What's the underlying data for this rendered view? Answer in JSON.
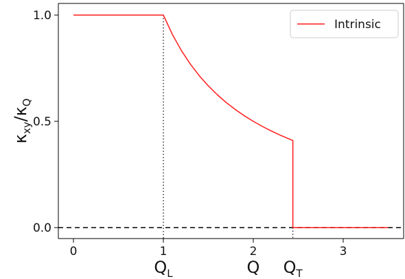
{
  "chart_data": {
    "type": "line",
    "title": "",
    "xlabel": "Q",
    "ylabel": "κxy/κQ",
    "ylabel_parts": {
      "main": "κ",
      "sub": "xy",
      "sep": "/",
      "main2": "κ",
      "sub2": "Q"
    },
    "xlim": [
      -0.17,
      3.67
    ],
    "ylim": [
      -0.05,
      1.05
    ],
    "xticks": [
      0,
      1,
      2,
      3
    ],
    "xtick_labels": [
      "0",
      "1",
      "2",
      "3"
    ],
    "yticks": [
      0.0,
      0.5,
      1.0
    ],
    "ytick_labels": [
      "0.0",
      "0.5",
      "1.0"
    ],
    "grid": false,
    "legend": {
      "placement": "top-right",
      "entries": [
        "Intrinsic"
      ]
    },
    "series": [
      {
        "name": "Intrinsic",
        "color": "#ff1a1a",
        "x": [
          0,
          1,
          1.1,
          1.2,
          1.3,
          1.4,
          1.5,
          1.6,
          1.7,
          1.8,
          1.9,
          2.0,
          2.1,
          2.2,
          2.3,
          2.42,
          2.44,
          2.44,
          3.5
        ],
        "y": [
          1.0,
          1.0,
          0.9091,
          0.8333,
          0.7692,
          0.7143,
          0.6667,
          0.625,
          0.5882,
          0.5556,
          0.5263,
          0.5,
          0.4762,
          0.4545,
          0.4348,
          0.4132,
          0.41,
          0.0,
          0.0
        ]
      }
    ],
    "reference_lines": [
      {
        "type": "horizontal",
        "y": 0.0,
        "style": "dashed",
        "color": "#000000"
      },
      {
        "type": "vertical",
        "x": 1.0,
        "y_to": 1.0,
        "style": "dotted",
        "color": "#000000",
        "label": "QL",
        "label_main": "Q",
        "label_sub": "L"
      },
      {
        "type": "vertical",
        "x": 2.44,
        "y_to": 0.0,
        "style": "dotted",
        "color": "#000000",
        "label": "QT",
        "label_main": "Q",
        "label_sub": "T"
      }
    ]
  }
}
